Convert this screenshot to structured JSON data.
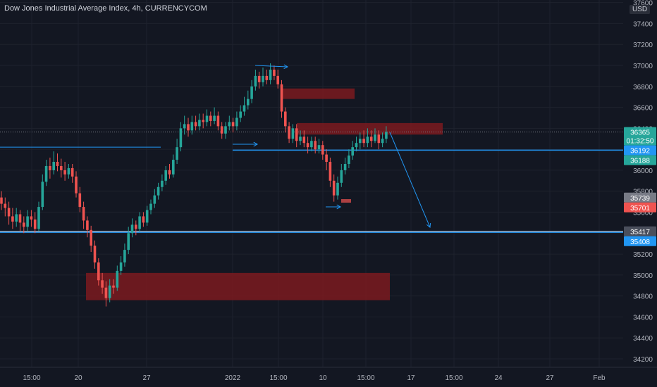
{
  "chart_data": {
    "type": "candlestick",
    "title": "Dow Jones Industrial Average Index, 4h, CURRENCYCOM",
    "currency": "USD",
    "ylim": [
      34100,
      37700
    ],
    "y_ticks": [
      34200,
      34400,
      34600,
      34800,
      35000,
      35200,
      35400,
      35600,
      35800,
      36000,
      36200,
      36400,
      36600,
      36800,
      37000,
      37200,
      37400,
      37600
    ],
    "x_tick_labels": [
      "15:00",
      "20",
      "27",
      "2022",
      "15:00",
      "10",
      "15:00",
      "17",
      "15:00",
      "24",
      "27",
      "Feb"
    ],
    "colors": {
      "up": "#26a69a",
      "down": "#ef5350",
      "background": "#131722",
      "zone": "#7b1a1f",
      "hline": "#2196f3"
    },
    "candles": [
      [
        35740,
        35680,
        35800,
        35620
      ],
      [
        35680,
        35640,
        35740,
        35560
      ],
      [
        35640,
        35560,
        35700,
        35480
      ],
      [
        35560,
        35510,
        35640,
        35440
      ],
      [
        35510,
        35580,
        35640,
        35460
      ],
      [
        35580,
        35500,
        35620,
        35420
      ],
      [
        35500,
        35460,
        35560,
        35400
      ],
      [
        35460,
        35560,
        35620,
        35420
      ],
      [
        35560,
        35530,
        35620,
        35460
      ],
      [
        35530,
        35440,
        35600,
        35400
      ],
      [
        35440,
        35650,
        35700,
        35420
      ],
      [
        35650,
        35890,
        35960,
        35620
      ],
      [
        35890,
        36040,
        36100,
        35850
      ],
      [
        36040,
        36000,
        36120,
        35920
      ],
      [
        36000,
        36080,
        36180,
        35960
      ],
      [
        36080,
        36040,
        36160,
        35990
      ],
      [
        36040,
        36000,
        36110,
        35930
      ],
      [
        36000,
        35960,
        36080,
        35900
      ],
      [
        35960,
        36020,
        36060,
        35920
      ],
      [
        36020,
        35940,
        36060,
        35880
      ],
      [
        35940,
        35780,
        35990,
        35740
      ],
      [
        35780,
        35650,
        35840,
        35600
      ],
      [
        35650,
        35520,
        35700,
        35440
      ],
      [
        35520,
        35430,
        35560,
        35360
      ],
      [
        35430,
        35280,
        35470,
        35220
      ],
      [
        35280,
        35120,
        35330,
        35060
      ],
      [
        35120,
        34950,
        35160,
        34900
      ],
      [
        34950,
        34880,
        35020,
        34820
      ],
      [
        34880,
        34780,
        34940,
        34700
      ],
      [
        34780,
        34900,
        34960,
        34740
      ],
      [
        34900,
        34880,
        34960,
        34820
      ],
      [
        34880,
        35040,
        35090,
        34850
      ],
      [
        35040,
        35120,
        35180,
        35000
      ],
      [
        35120,
        35240,
        35300,
        35080
      ],
      [
        35240,
        35400,
        35460,
        35200
      ],
      [
        35400,
        35480,
        35540,
        35360
      ],
      [
        35480,
        35440,
        35520,
        35380
      ],
      [
        35440,
        35560,
        35600,
        35410
      ],
      [
        35560,
        35500,
        35600,
        35460
      ],
      [
        35500,
        35620,
        35660,
        35470
      ],
      [
        35620,
        35680,
        35720,
        35580
      ],
      [
        35680,
        35760,
        35820,
        35640
      ],
      [
        35760,
        35840,
        35880,
        35720
      ],
      [
        35840,
        35900,
        35960,
        35800
      ],
      [
        35900,
        36000,
        36040,
        35860
      ],
      [
        36000,
        35960,
        36060,
        35920
      ],
      [
        35960,
        36100,
        36150,
        35930
      ],
      [
        36100,
        36220,
        36300,
        36060
      ],
      [
        36220,
        36400,
        36460,
        36180
      ],
      [
        36400,
        36440,
        36520,
        36340
      ],
      [
        36440,
        36380,
        36500,
        36320
      ],
      [
        36380,
        36460,
        36520,
        36340
      ],
      [
        36460,
        36420,
        36520,
        36380
      ],
      [
        36420,
        36480,
        36540,
        36380
      ],
      [
        36480,
        36460,
        36540,
        36400
      ],
      [
        36460,
        36520,
        36580,
        36420
      ],
      [
        36520,
        36470,
        36560,
        36420
      ],
      [
        36470,
        36520,
        36600,
        36440
      ],
      [
        36520,
        36420,
        36560,
        36380
      ],
      [
        36420,
        36350,
        36460,
        36300
      ],
      [
        36350,
        36420,
        36460,
        36300
      ],
      [
        36420,
        36460,
        36520,
        36380
      ],
      [
        36460,
        36420,
        36500,
        36360
      ],
      [
        36420,
        36500,
        36560,
        36380
      ],
      [
        36500,
        36560,
        36620,
        36460
      ],
      [
        36560,
        36620,
        36700,
        36520
      ],
      [
        36620,
        36680,
        36760,
        36580
      ],
      [
        36680,
        36800,
        36860,
        36640
      ],
      [
        36800,
        36900,
        36960,
        36760
      ],
      [
        36900,
        36840,
        36940,
        36780
      ],
      [
        36840,
        36900,
        36980,
        36800
      ],
      [
        36900,
        36860,
        36960,
        36820
      ],
      [
        36860,
        36960,
        37020,
        36820
      ],
      [
        36960,
        36900,
        37000,
        36860
      ],
      [
        36900,
        36820,
        36960,
        36780
      ],
      [
        36820,
        36560,
        36860,
        36500
      ],
      [
        36560,
        36420,
        36600,
        36360
      ],
      [
        36420,
        36300,
        36460,
        36260
      ],
      [
        36300,
        36400,
        36440,
        36260
      ],
      [
        36400,
        36280,
        36440,
        36220
      ],
      [
        36280,
        36320,
        36380,
        36240
      ],
      [
        36320,
        36260,
        36380,
        36220
      ],
      [
        36260,
        36220,
        36320,
        36160
      ],
      [
        36220,
        36280,
        36320,
        36180
      ],
      [
        36280,
        36200,
        36320,
        36160
      ],
      [
        36200,
        36240,
        36300,
        36160
      ],
      [
        36240,
        36150,
        36280,
        36100
      ],
      [
        36150,
        36080,
        36200,
        36000
      ],
      [
        36080,
        35900,
        36120,
        35840
      ],
      [
        35900,
        35760,
        35960,
        35700
      ],
      [
        35760,
        35880,
        35940,
        35720
      ],
      [
        35880,
        36000,
        36060,
        35840
      ],
      [
        36000,
        36060,
        36120,
        35960
      ],
      [
        36060,
        36140,
        36200,
        36020
      ],
      [
        36140,
        36220,
        36280,
        36100
      ],
      [
        36220,
        36260,
        36320,
        36180
      ],
      [
        36260,
        36300,
        36360,
        36200
      ],
      [
        36300,
        36260,
        36380,
        36220
      ],
      [
        36260,
        36320,
        36400,
        36220
      ],
      [
        36320,
        36280,
        36380,
        36220
      ],
      [
        36280,
        36340,
        36400,
        36260
      ],
      [
        36340,
        36260,
        36380,
        36200
      ],
      [
        36260,
        36300,
        36360,
        36220
      ],
      [
        36300,
        36365,
        36420,
        36260
      ]
    ],
    "resistance_zones": [
      {
        "x0": 0.85,
        "x1": 1.14,
        "y0": 34760,
        "y1": 35020
      },
      {
        "x0": 0.62,
        "x1": 0.7,
        "y0": 36680,
        "y1": 36780
      },
      {
        "x0": 0.75,
        "x1": 1.11,
        "y0": 36340,
        "y1": 36450
      }
    ],
    "horizontal_lines": [
      {
        "y": 36192,
        "x0": 0.6,
        "x1": 1.2
      },
      {
        "y": 35408,
        "x0": 0.0,
        "x1": 1.2
      }
    ],
    "price_labels": [
      {
        "value": "36365",
        "sub": "01:32:50",
        "y": 36365,
        "color": "#26a69a"
      },
      {
        "value": "36192",
        "y": 36192,
        "color": "#2196f3"
      },
      {
        "value": "36188",
        "y": 36188,
        "color": "#26a69a"
      },
      {
        "value": "35739",
        "y": 35739,
        "color": "#787b86"
      },
      {
        "value": "35701",
        "y": 35701,
        "color": "#ef5350"
      },
      {
        "value": "35417",
        "y": 35417,
        "color": "#4a4f5c"
      },
      {
        "value": "35408",
        "y": 35408,
        "color": "#2196f3"
      }
    ]
  }
}
